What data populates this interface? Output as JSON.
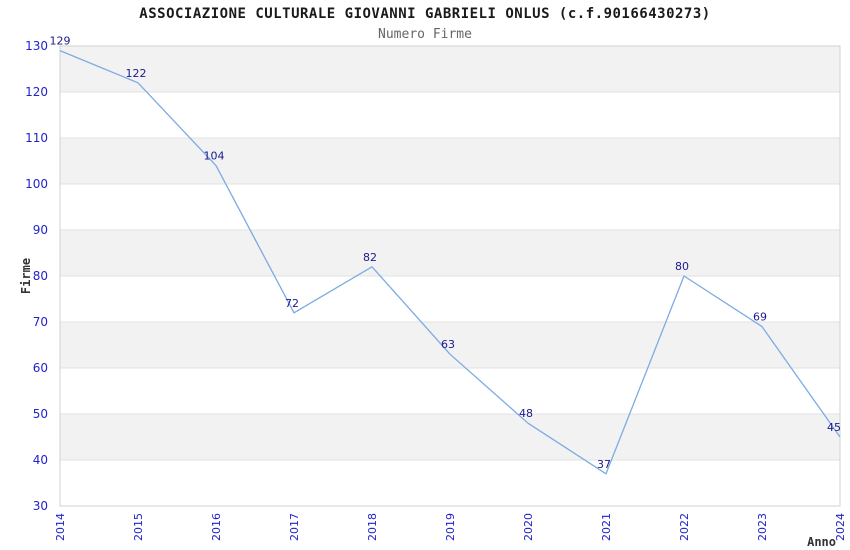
{
  "header": {
    "title": "ASSOCIAZIONE CULTURALE GIOVANNI GABRIELI ONLUS (c.f.90166430273)",
    "subtitle": "Numero Firme"
  },
  "chart_data": {
    "type": "line",
    "title": "ASSOCIAZIONE CULTURALE GIOVANNI GABRIELI ONLUS (c.f.90166430273)",
    "subtitle": "Numero Firme",
    "xlabel": "Anno",
    "ylabel": "Firme",
    "categories": [
      "2014",
      "2015",
      "2016",
      "2017",
      "2018",
      "2019",
      "2020",
      "2021",
      "2022",
      "2023",
      "2024"
    ],
    "series": [
      {
        "name": "Numero Firme",
        "values": [
          129,
          122,
          104,
          72,
          82,
          63,
          48,
          37,
          80,
          69,
          45
        ]
      }
    ],
    "data_labels": [
      "129",
      "122",
      "104",
      "72",
      "82",
      "63",
      "48",
      "37",
      "80",
      "69",
      "45"
    ],
    "ylim": [
      30,
      130
    ],
    "ytick_step": 10,
    "ytick_labels": [
      "30",
      "40",
      "50",
      "60",
      "70",
      "80",
      "90",
      "100",
      "110",
      "120",
      "130"
    ],
    "grid": true,
    "legend": false,
    "band_fill": true,
    "colors": {
      "line": "#7dabe3",
      "tick_label": "#2222cc",
      "data_label": "#1a1a8c",
      "band": "#f2f2f2",
      "grid_line": "#e2e2e2",
      "plot_border": "#d2d2d2",
      "axis_label": "#333333",
      "title": "#1a1a1a",
      "subtitle": "#666666",
      "background": "#ffffff"
    }
  }
}
